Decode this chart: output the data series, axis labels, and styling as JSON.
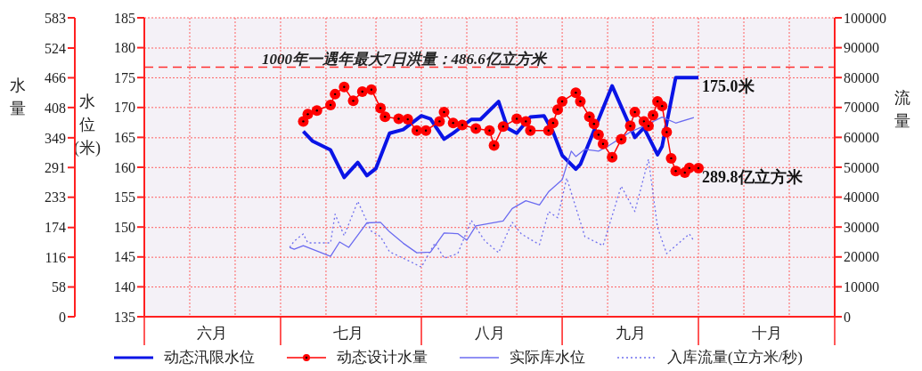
{
  "chart_data": {
    "type": "line",
    "ylabel": "水位(米)",
    "y3label": "水量",
    "y2label": "流量",
    "categories": [
      null,
      null,
      null,
      null,
      null,
      null,
      null,
      null,
      null,
      null,
      null,
      null,
      null,
      null,
      null,
      "六月",
      null,
      null,
      null,
      null,
      null,
      null,
      null,
      null,
      null,
      null,
      null,
      null,
      null,
      null,
      null,
      null,
      null,
      null,
      null,
      null,
      null,
      null,
      null,
      null,
      null,
      null,
      null,
      null,
      null,
      "七月",
      null,
      null,
      null,
      null,
      null,
      null,
      null,
      null,
      null,
      null,
      null,
      null,
      null,
      null,
      null,
      null,
      null,
      null,
      null,
      null,
      null,
      null,
      null,
      null,
      null,
      null,
      null,
      null,
      null,
      null,
      "八月",
      null,
      null,
      null,
      null,
      null,
      null,
      null,
      null,
      null,
      null,
      null,
      null,
      null,
      null,
      null,
      null,
      null,
      null,
      null,
      null,
      null,
      null,
      null,
      null,
      null,
      null,
      null,
      null,
      null,
      null,
      "九月",
      null,
      null,
      null,
      null,
      null,
      null,
      null,
      null,
      null,
      null,
      null,
      null,
      null,
      null,
      null,
      null,
      null,
      null,
      null,
      null,
      null,
      null,
      null,
      null,
      null,
      null,
      null,
      null,
      null,
      "十月",
      null,
      null,
      null,
      null,
      null,
      null,
      null,
      null,
      null,
      null,
      null,
      null,
      null,
      null,
      null
    ],
    "ylim": [
      135,
      185
    ],
    "yticks": [
      135,
      140,
      145,
      150,
      155,
      160,
      165,
      170,
      175,
      180,
      185
    ],
    "y3lim": [
      0,
      583
    ],
    "y3ticks": [
      0,
      58,
      116,
      174,
      233,
      291,
      349,
      408,
      466,
      524,
      583
    ],
    "y2lim": [
      0,
      100000
    ],
    "y2ticks": [
      0,
      10000,
      20000,
      30000,
      40000,
      50000,
      60000,
      70000,
      80000,
      90000,
      100000
    ],
    "grid": true,
    "legend": "bottom",
    "ref_lines": [
      {
        "axis": "y3",
        "value": 486.6,
        "label": "1000年一遇年最大7日洪量：486.6亿立方米",
        "color": "#ff3030",
        "line_style": "dashed"
      }
    ],
    "series": [
      {
        "name": "动态汛限水位",
        "color": "#0a14e6",
        "marker": "none",
        "line_style": "solid",
        "values": [
          null,
          null,
          null,
          null,
          null,
          null,
          null,
          null,
          null,
          null,
          null,
          null,
          null,
          null,
          null,
          null,
          null,
          null,
          null,
          null,
          null,
          null,
          null,
          null,
          null,
          null,
          null,
          null,
          null,
          null,
          null,
          null,
          null,
          null,
          null,
          166.0,
          null,
          164.4,
          null,
          null,
          null,
          162.9,
          null,
          null,
          158.3,
          null,
          null,
          160.8,
          null,
          158.6,
          null,
          159.8,
          null,
          null,
          165.7,
          null,
          null,
          166.3,
          null,
          null,
          null,
          168.6,
          null,
          168.1,
          null,
          null,
          164.7,
          null,
          165.7,
          null,
          null,
          null,
          168.0,
          null,
          168.0,
          null,
          null,
          null,
          171.0,
          null,
          166.5,
          null,
          165.7,
          null,
          null,
          168.4,
          null,
          null,
          168.6,
          null,
          165.9,
          null,
          162.0,
          null,
          null,
          159.7,
          160.5,
          null,
          null,
          null,
          null,
          null,
          null,
          173.6,
          null,
          null,
          null,
          null,
          165.0,
          null,
          166.6,
          null,
          null,
          162.1,
          163.5,
          null,
          null,
          175.0,
          null,
          null,
          null,
          null,
          175.0,
          null,
          null,
          null,
          null,
          null,
          null,
          null,
          null,
          null,
          null,
          null,
          null,
          null,
          null,
          null,
          null,
          null,
          null,
          null,
          null,
          null,
          null,
          null,
          null,
          null,
          null,
          null,
          null,
          null,
          null
        ],
        "value_labels": [
          null,
          null,
          null,
          null,
          null,
          null,
          null,
          null,
          null,
          null,
          null,
          null,
          null,
          null,
          null,
          null,
          null,
          null,
          null,
          null,
          null,
          null,
          null,
          null,
          null,
          null,
          null,
          null,
          null,
          null,
          null,
          null,
          null,
          null,
          null,
          null,
          null,
          null,
          null,
          null,
          null,
          null,
          null,
          null,
          null,
          null,
          null,
          null,
          null,
          null,
          null,
          null,
          null,
          null,
          null,
          null,
          null,
          null,
          null,
          null,
          null,
          null,
          null,
          null,
          null,
          null,
          null,
          null,
          null,
          null,
          null,
          null,
          null,
          null,
          null,
          null,
          null,
          null,
          null,
          null,
          null,
          null,
          null,
          null,
          null,
          null,
          null,
          null,
          null,
          null,
          null,
          null,
          null,
          null,
          null,
          null,
          null,
          null,
          null,
          null,
          null,
          null,
          null,
          null,
          null,
          null,
          null,
          null,
          null,
          null,
          null,
          null,
          null,
          null,
          null,
          null,
          null,
          null,
          null,
          null,
          null,
          null,
          "175.0米",
          null,
          null,
          null,
          null,
          null,
          null,
          null,
          null,
          null,
          null,
          null,
          null,
          null,
          null,
          null,
          null,
          null,
          null,
          null,
          null,
          null,
          null,
          null,
          null,
          null,
          null,
          null,
          null,
          null,
          null
        ]
      },
      {
        "name": "动态设计水量",
        "color": "#ff0000",
        "axis": "y3",
        "marker": "circle",
        "line_style": "solid",
        "values": [
          null,
          null,
          null,
          null,
          null,
          null,
          null,
          null,
          null,
          null,
          null,
          null,
          null,
          null,
          null,
          null,
          null,
          null,
          null,
          null,
          null,
          null,
          null,
          null,
          null,
          null,
          null,
          null,
          null,
          null,
          null,
          null,
          null,
          null,
          null,
          381,
          395,
          null,
          402,
          null,
          null,
          413,
          434,
          null,
          448,
          null,
          421,
          null,
          439,
          null,
          443,
          null,
          407,
          390,
          null,
          null,
          386,
          null,
          385,
          null,
          363,
          null,
          363,
          null,
          null,
          381,
          399,
          null,
          378,
          null,
          374,
          null,
          null,
          367,
          null,
          null,
          363,
          334,
          null,
          371,
          null,
          null,
          386,
          null,
          381,
          363,
          null,
          null,
          null,
          363,
          378,
          404,
          420,
          null,
          null,
          437,
          420,
          null,
          390,
          376,
          355,
          337,
          null,
          311,
          null,
          346,
          null,
          372,
          399,
          null,
          381,
          372,
          393,
          420,
          411,
          360,
          309,
          284,
          null,
          281,
          290,
          null,
          289.8,
          null,
          null,
          null,
          null,
          null,
          null,
          null,
          null,
          null,
          null,
          null,
          null,
          null,
          null,
          null,
          null,
          null,
          null,
          null,
          null,
          null,
          null,
          null,
          null,
          null,
          null,
          null,
          null,
          null,
          null
        ],
        "value_labels": [
          null,
          null,
          null,
          null,
          null,
          null,
          null,
          null,
          null,
          null,
          null,
          null,
          null,
          null,
          null,
          null,
          null,
          null,
          null,
          null,
          null,
          null,
          null,
          null,
          null,
          null,
          null,
          null,
          null,
          null,
          null,
          null,
          null,
          null,
          null,
          null,
          null,
          null,
          null,
          null,
          null,
          null,
          null,
          null,
          null,
          null,
          null,
          null,
          null,
          null,
          null,
          null,
          null,
          null,
          null,
          null,
          null,
          null,
          null,
          null,
          null,
          null,
          null,
          null,
          null,
          null,
          null,
          null,
          null,
          null,
          null,
          null,
          null,
          null,
          null,
          null,
          null,
          null,
          null,
          null,
          null,
          null,
          null,
          null,
          null,
          null,
          null,
          null,
          null,
          null,
          null,
          null,
          null,
          null,
          null,
          null,
          null,
          null,
          null,
          null,
          null,
          null,
          null,
          null,
          null,
          null,
          null,
          null,
          null,
          null,
          null,
          null,
          null,
          null,
          null,
          null,
          null,
          null,
          null,
          null,
          null,
          null,
          "289.8亿立方米",
          null,
          null,
          null,
          null,
          null,
          null,
          null,
          null,
          null,
          null,
          null,
          null,
          null,
          null,
          null,
          null,
          null,
          null,
          null,
          null,
          null,
          null,
          null,
          null,
          null,
          null,
          null,
          null,
          null,
          null
        ]
      },
      {
        "name": "实际库水位",
        "color": "#6b6bf0",
        "marker": "none",
        "line_style": "solid",
        "values": [
          null,
          null,
          null,
          null,
          null,
          null,
          null,
          null,
          null,
          null,
          null,
          null,
          null,
          null,
          null,
          null,
          null,
          null,
          null,
          null,
          null,
          null,
          null,
          null,
          null,
          null,
          null,
          null,
          null,
          null,
          null,
          null,
          146.6,
          146.3,
          null,
          146.9,
          null,
          null,
          null,
          null,
          null,
          145.1,
          null,
          147.5,
          null,
          146.6,
          null,
          null,
          null,
          150.7,
          null,
          null,
          150.8,
          null,
          149.2,
          null,
          null,
          147.3,
          null,
          null,
          145.7,
          null,
          null,
          145.8,
          null,
          null,
          149.0,
          null,
          null,
          148.9,
          null,
          147.8,
          null,
          150.2,
          null,
          null,
          null,
          null,
          null,
          151.0,
          null,
          153.1,
          null,
          null,
          154.4,
          null,
          null,
          153.7,
          null,
          155.9,
          null,
          null,
          157.9,
          null,
          162.7,
          161.8,
          null,
          163.0,
          null,
          null,
          162.7,
          null,
          163.5,
          null,
          null,
          null,
          null,
          165.9,
          null,
          null,
          166.9,
          null,
          null,
          null,
          168.4,
          null,
          null,
          167.4,
          null,
          null,
          null,
          168.3,
          null,
          null,
          null,
          null,
          null,
          null,
          null,
          null,
          null,
          null,
          null,
          null,
          null,
          null,
          null,
          null,
          null,
          null,
          null,
          null,
          null,
          null,
          null,
          null,
          null,
          null,
          null,
          null,
          null,
          null,
          null
        ]
      },
      {
        "name": "入库流量(立方米/秒)",
        "color": "#7070ee",
        "axis": "y2",
        "marker": "none",
        "line_style": "dotted",
        "values": [
          null,
          null,
          null,
          null,
          null,
          null,
          null,
          null,
          null,
          null,
          null,
          null,
          null,
          null,
          null,
          null,
          null,
          null,
          null,
          null,
          null,
          null,
          null,
          null,
          null,
          null,
          null,
          null,
          null,
          null,
          null,
          null,
          23200,
          25300,
          null,
          27700,
          24700,
          null,
          null,
          null,
          null,
          24700,
          34300,
          null,
          27100,
          null,
          null,
          38600,
          null,
          null,
          28600,
          null,
          26800,
          null,
          21700,
          null,
          null,
          19600,
          null,
          null,
          null,
          16600,
          null,
          null,
          24700,
          null,
          19600,
          null,
          null,
          21100,
          null,
          null,
          32200,
          null,
          null,
          25300,
          null,
          null,
          21400,
          null,
          null,
          31600,
          null,
          27700,
          null,
          null,
          null,
          24100,
          null,
          35200,
          null,
          33100,
          null,
          46400,
          null,
          null,
          null,
          26800,
          null,
          null,
          null,
          23800,
          null,
          null,
          null,
          43700,
          null,
          null,
          35200,
          null,
          null,
          52700,
          null,
          29800,
          null,
          21100,
          null,
          null,
          null,
          null,
          27700,
          25300,
          null,
          null,
          null,
          null,
          null,
          null,
          null,
          null,
          null,
          null,
          null,
          null,
          null,
          null,
          null,
          null,
          null,
          null,
          null,
          null,
          null,
          null,
          null,
          null,
          null,
          null,
          null,
          null,
          null,
          null,
          null
        ]
      }
    ]
  }
}
